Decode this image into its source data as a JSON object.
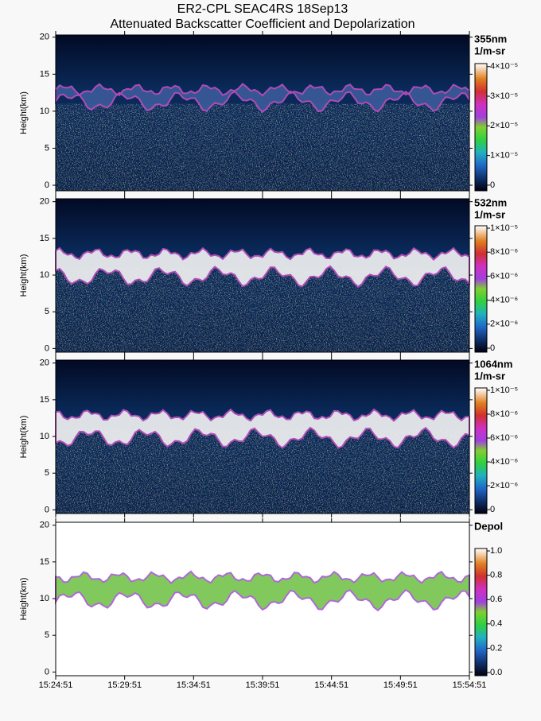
{
  "title": [
    "ER2-CPL SEAC4RS 18Sep13",
    "Attenuated Backscatter Coefficient and Depolarization"
  ],
  "chart_data": [
    {
      "type": "heatmap",
      "ylabel": "Height(km)",
      "ylim": [
        -0.75,
        20.3
      ],
      "yticks": [
        0,
        5,
        10,
        15,
        20
      ],
      "xticks": [
        "15:24:51",
        "15:29:51",
        "15:34:51",
        "15:39:51",
        "15:44:51",
        "15:49:51",
        "15:54:51"
      ],
      "colorbar_label": [
        "355nm",
        "1/m-sr"
      ],
      "clim": [
        -1.9e-06,
        4.1e-05
      ],
      "cticks": [
        0,
        {
          "value": 1e-05,
          "label": "1×10⁻⁵"
        },
        {
          "value": 2e-05,
          "label": "2×10⁻⁵"
        },
        {
          "value": 3e-05,
          "label": "3×10⁻⁵"
        },
        {
          "value": 4e-05,
          "label": "4×10⁻⁵"
        }
      ]
    },
    {
      "type": "heatmap",
      "ylabel": "Height(km)",
      "ylim": [
        -0.5,
        20.4
      ],
      "yticks": [
        0,
        5,
        10,
        15,
        20
      ],
      "xticks": [
        "15:24:51",
        "15:29:51",
        "15:34:51",
        "15:39:51",
        "15:44:51",
        "15:49:51",
        "15:54:51"
      ],
      "colorbar_label": [
        "532nm",
        "1/m-sr"
      ],
      "clim": [
        -3.3e-07,
        1.02e-05
      ],
      "cticks": [
        0,
        {
          "value": 2e-06,
          "label": "2×10⁻⁶"
        },
        {
          "value": 4e-06,
          "label": "4×10⁻⁶"
        },
        {
          "value": 6e-06,
          "label": "6×10⁻⁶"
        },
        {
          "value": 8e-06,
          "label": "8×10⁻⁶"
        },
        {
          "value": 1e-05,
          "label": "1×10⁻⁵"
        }
      ]
    },
    {
      "type": "heatmap",
      "ylabel": "Height(km)",
      "ylim": [
        -0.5,
        20.4
      ],
      "yticks": [
        0,
        5,
        10,
        15,
        20
      ],
      "xticks": [
        "15:24:51",
        "15:29:51",
        "15:34:51",
        "15:39:51",
        "15:44:51",
        "15:49:51",
        "15:54:51"
      ],
      "colorbar_label": [
        "1064nm",
        "1/m-sr"
      ],
      "clim": [
        -3.3e-07,
        1.02e-05
      ],
      "cticks": [
        0,
        {
          "value": 2e-06,
          "label": "2×10⁻⁶"
        },
        {
          "value": 4e-06,
          "label": "4×10⁻⁶"
        },
        {
          "value": 6e-06,
          "label": "6×10⁻⁶"
        },
        {
          "value": 8e-06,
          "label": "8×10⁻⁶"
        },
        {
          "value": 1e-05,
          "label": "1×10⁻⁵"
        }
      ]
    },
    {
      "type": "heatmap",
      "ylabel": "Height(km)",
      "ylim": [
        -0.5,
        20.4
      ],
      "yticks": [
        0,
        5,
        10,
        15,
        20
      ],
      "xticks": [
        "15:24:51",
        "15:29:51",
        "15:34:51",
        "15:39:51",
        "15:44:51",
        "15:49:51",
        "15:54:51"
      ],
      "colorbar_label": [
        "Depol"
      ],
      "clim": [
        -0.026,
        1.02
      ],
      "cticks": [
        {
          "value": 0,
          "label": "0.0"
        },
        0.2,
        0.4,
        0.6,
        0.8,
        {
          "value": 1,
          "label": "1.0"
        }
      ]
    }
  ]
}
